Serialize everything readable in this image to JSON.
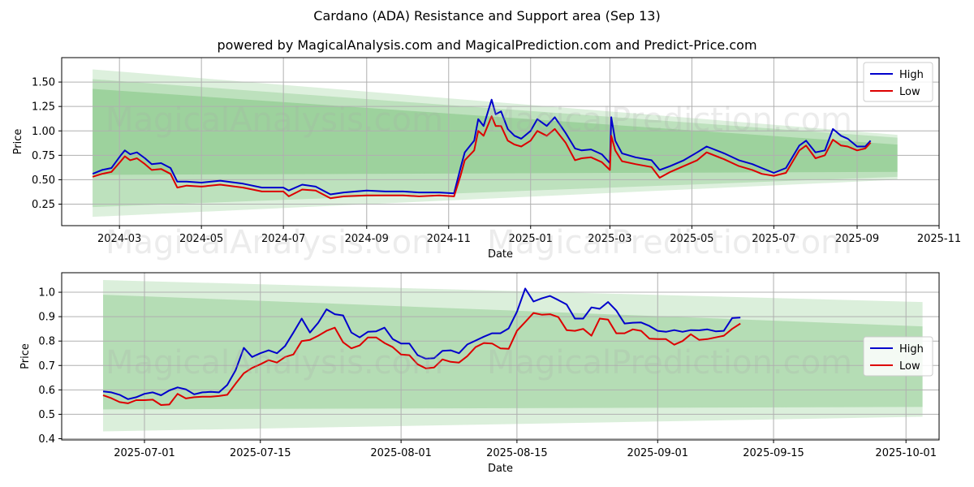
{
  "title": "Cardano (ADA) Resistance and Support area (Sep 13)",
  "subtitle": "powered by MagicalAnalysis.com and MagicalPrediction.com and Predict-Price.com",
  "watermarks": [
    "MagicalAnalysis.com",
    "MagicalPrediction.com"
  ],
  "colors": {
    "high": "#0000cc",
    "low": "#dd0000",
    "band": "#2ca02c",
    "grid": "#b0b0b0"
  },
  "chart_data": [
    {
      "type": "line",
      "xlabel": "Date",
      "ylabel": "Price",
      "xlim": [
        "2024-01-18",
        "2025-11-01"
      ],
      "ylim": [
        0.03,
        1.75
      ],
      "xticks": [
        "2024-03",
        "2024-05",
        "2024-07",
        "2024-09",
        "2024-11",
        "2025-01",
        "2025-03",
        "2025-05",
        "2025-07",
        "2025-09",
        "2025-11"
      ],
      "xtick_dates": [
        "2024-03-01",
        "2024-05-01",
        "2024-07-01",
        "2024-09-01",
        "2024-11-01",
        "2025-01-01",
        "2025-03-01",
        "2025-05-01",
        "2025-07-01",
        "2025-09-01",
        "2025-11-01"
      ],
      "yticks": [
        0.25,
        0.5,
        0.75,
        1.0,
        1.25,
        1.5
      ],
      "ytick_labels": [
        "0.25",
        "0.50",
        "0.75",
        "1.00",
        "1.25",
        "1.50"
      ],
      "grid": true,
      "legend": {
        "position": "top-right",
        "entries": [
          "High",
          "Low"
        ]
      },
      "bands": [
        {
          "x": [
            "2024-02-10",
            "2025-10-01"
          ],
          "upper": [
            1.63,
            0.96
          ],
          "lower": [
            0.12,
            0.5
          ]
        },
        {
          "x": [
            "2024-02-10",
            "2025-10-01"
          ],
          "upper": [
            1.53,
            0.93
          ],
          "lower": [
            0.22,
            0.53
          ]
        },
        {
          "x": [
            "2024-02-10",
            "2025-10-01"
          ],
          "upper": [
            1.43,
            0.86
          ],
          "lower": [
            0.55,
            0.58
          ]
        }
      ],
      "x": [
        "2024-02-10",
        "2024-02-17",
        "2024-02-24",
        "2024-03-02",
        "2024-03-05",
        "2024-03-09",
        "2024-03-14",
        "2024-03-20",
        "2024-03-25",
        "2024-04-01",
        "2024-04-08",
        "2024-04-13",
        "2024-04-20",
        "2024-05-01",
        "2024-05-15",
        "2024-06-01",
        "2024-06-15",
        "2024-07-01",
        "2024-07-05",
        "2024-07-15",
        "2024-07-25",
        "2024-08-05",
        "2024-08-15",
        "2024-09-01",
        "2024-09-15",
        "2024-09-28",
        "2024-10-10",
        "2024-10-25",
        "2024-11-05",
        "2024-11-10",
        "2024-11-13",
        "2024-11-20",
        "2024-11-23",
        "2024-11-27",
        "2024-12-03",
        "2024-12-06",
        "2024-12-10",
        "2024-12-15",
        "2024-12-20",
        "2024-12-25",
        "2025-01-01",
        "2025-01-06",
        "2025-01-13",
        "2025-01-19",
        "2025-01-27",
        "2025-02-03",
        "2025-02-08",
        "2025-02-15",
        "2025-02-23",
        "2025-03-01",
        "2025-03-02",
        "2025-03-05",
        "2025-03-10",
        "2025-03-20",
        "2025-04-01",
        "2025-04-07",
        "2025-04-15",
        "2025-04-25",
        "2025-05-05",
        "2025-05-12",
        "2025-05-25",
        "2025-06-05",
        "2025-06-15",
        "2025-06-22",
        "2025-07-01",
        "2025-07-10",
        "2025-07-20",
        "2025-07-25",
        "2025-08-01",
        "2025-08-08",
        "2025-08-14",
        "2025-08-20",
        "2025-08-25",
        "2025-09-01",
        "2025-09-07",
        "2025-09-11"
      ],
      "series": [
        {
          "name": "High",
          "values": [
            0.56,
            0.6,
            0.62,
            0.75,
            0.8,
            0.76,
            0.78,
            0.72,
            0.66,
            0.67,
            0.62,
            0.48,
            0.48,
            0.47,
            0.49,
            0.46,
            0.42,
            0.42,
            0.39,
            0.45,
            0.43,
            0.35,
            0.37,
            0.39,
            0.38,
            0.38,
            0.37,
            0.37,
            0.36,
            0.63,
            0.78,
            0.9,
            1.12,
            1.05,
            1.32,
            1.17,
            1.2,
            1.02,
            0.95,
            0.92,
            1.0,
            1.12,
            1.05,
            1.14,
            0.98,
            0.82,
            0.8,
            0.81,
            0.76,
            0.67,
            1.14,
            0.9,
            0.77,
            0.73,
            0.7,
            0.6,
            0.64,
            0.7,
            0.78,
            0.84,
            0.77,
            0.7,
            0.66,
            0.62,
            0.57,
            0.62,
            0.85,
            0.9,
            0.78,
            0.8,
            1.02,
            0.95,
            0.92,
            0.84,
            0.84,
            0.9
          ]
        },
        {
          "name": "Low",
          "values": [
            0.53,
            0.56,
            0.58,
            0.69,
            0.74,
            0.7,
            0.72,
            0.66,
            0.6,
            0.61,
            0.56,
            0.42,
            0.44,
            0.43,
            0.45,
            0.42,
            0.38,
            0.38,
            0.33,
            0.4,
            0.39,
            0.31,
            0.33,
            0.34,
            0.34,
            0.34,
            0.33,
            0.34,
            0.33,
            0.55,
            0.7,
            0.8,
            1.0,
            0.95,
            1.15,
            1.05,
            1.05,
            0.9,
            0.86,
            0.84,
            0.9,
            1.0,
            0.95,
            1.02,
            0.88,
            0.7,
            0.72,
            0.73,
            0.68,
            0.6,
            0.95,
            0.8,
            0.69,
            0.66,
            0.63,
            0.52,
            0.58,
            0.64,
            0.7,
            0.78,
            0.71,
            0.64,
            0.6,
            0.56,
            0.54,
            0.57,
            0.8,
            0.85,
            0.72,
            0.75,
            0.91,
            0.85,
            0.84,
            0.8,
            0.82,
            0.88
          ]
        }
      ]
    },
    {
      "type": "line",
      "xlabel": "Date",
      "ylabel": "Price",
      "xlim": [
        "2025-06-21",
        "2025-10-05"
      ],
      "ylim": [
        0.395,
        1.08
      ],
      "xticks": [
        "2025-07-01",
        "2025-07-15",
        "2025-08-01",
        "2025-08-15",
        "2025-09-01",
        "2025-09-15",
        "2025-10-01"
      ],
      "xtick_dates": [
        "2025-07-01",
        "2025-07-15",
        "2025-08-01",
        "2025-08-15",
        "2025-09-01",
        "2025-09-15",
        "2025-10-01"
      ],
      "yticks": [
        0.4,
        0.5,
        0.6,
        0.7,
        0.8,
        0.9,
        1.0
      ],
      "ytick_labels": [
        "0.4",
        "0.5",
        "0.6",
        "0.7",
        "0.8",
        "0.9",
        "1.0"
      ],
      "grid": true,
      "legend": {
        "position": "center-right",
        "entries": [
          "High",
          "Low"
        ]
      },
      "bands": [
        {
          "x": [
            "2025-06-26",
            "2025-10-03"
          ],
          "upper": [
            1.05,
            0.96
          ],
          "lower": [
            0.43,
            0.49
          ]
        },
        {
          "x": [
            "2025-06-26",
            "2025-10-03"
          ],
          "upper": [
            0.99,
            0.86
          ],
          "lower": [
            0.52,
            0.53
          ]
        }
      ],
      "x": [
        "2025-06-26",
        "2025-06-27",
        "2025-06-28",
        "2025-06-29",
        "2025-06-30",
        "2025-07-01",
        "2025-07-02",
        "2025-07-03",
        "2025-07-04",
        "2025-07-05",
        "2025-07-06",
        "2025-07-07",
        "2025-07-08",
        "2025-07-09",
        "2025-07-10",
        "2025-07-11",
        "2025-07-12",
        "2025-07-13",
        "2025-07-14",
        "2025-07-15",
        "2025-07-16",
        "2025-07-17",
        "2025-07-18",
        "2025-07-19",
        "2025-07-20",
        "2025-07-21",
        "2025-07-22",
        "2025-07-23",
        "2025-07-24",
        "2025-07-25",
        "2025-07-26",
        "2025-07-27",
        "2025-07-28",
        "2025-07-29",
        "2025-07-30",
        "2025-07-31",
        "2025-08-01",
        "2025-08-02",
        "2025-08-03",
        "2025-08-04",
        "2025-08-05",
        "2025-08-06",
        "2025-08-07",
        "2025-08-08",
        "2025-08-09",
        "2025-08-10",
        "2025-08-11",
        "2025-08-12",
        "2025-08-13",
        "2025-08-14",
        "2025-08-15",
        "2025-08-16",
        "2025-08-17",
        "2025-08-18",
        "2025-08-19",
        "2025-08-20",
        "2025-08-21",
        "2025-08-22",
        "2025-08-23",
        "2025-08-24",
        "2025-08-25",
        "2025-08-26",
        "2025-08-27",
        "2025-08-28",
        "2025-08-29",
        "2025-08-30",
        "2025-08-31",
        "2025-09-01",
        "2025-09-02",
        "2025-09-03",
        "2025-09-04",
        "2025-09-05",
        "2025-09-06",
        "2025-09-07",
        "2025-09-08",
        "2025-09-09",
        "2025-09-10",
        "2025-09-11"
      ],
      "series": [
        {
          "name": "High",
          "values": [
            0.594,
            0.59,
            0.58,
            0.562,
            0.57,
            0.584,
            0.59,
            0.578,
            0.598,
            0.61,
            0.602,
            0.582,
            0.59,
            0.592,
            0.59,
            0.62,
            0.68,
            0.772,
            0.735,
            0.75,
            0.762,
            0.75,
            0.78,
            0.835,
            0.892,
            0.835,
            0.875,
            0.93,
            0.91,
            0.905,
            0.835,
            0.815,
            0.838,
            0.84,
            0.855,
            0.808,
            0.79,
            0.79,
            0.742,
            0.728,
            0.73,
            0.76,
            0.762,
            0.75,
            0.786,
            0.802,
            0.818,
            0.832,
            0.832,
            0.852,
            0.92,
            1.015,
            0.962,
            0.975,
            0.985,
            0.968,
            0.95,
            0.892,
            0.892,
            0.938,
            0.932,
            0.96,
            0.925,
            0.872,
            0.875,
            0.876,
            0.862,
            0.842,
            0.838,
            0.845,
            0.838,
            0.845,
            0.844,
            0.848,
            0.84,
            0.842,
            0.894,
            0.896
          ]
        },
        {
          "name": "Low",
          "values": [
            0.578,
            0.566,
            0.55,
            0.545,
            0.558,
            0.558,
            0.56,
            0.538,
            0.54,
            0.584,
            0.565,
            0.57,
            0.572,
            0.572,
            0.575,
            0.58,
            0.625,
            0.668,
            0.69,
            0.705,
            0.722,
            0.712,
            0.735,
            0.745,
            0.8,
            0.805,
            0.822,
            0.842,
            0.855,
            0.795,
            0.77,
            0.782,
            0.815,
            0.815,
            0.792,
            0.775,
            0.745,
            0.742,
            0.705,
            0.688,
            0.692,
            0.725,
            0.715,
            0.712,
            0.738,
            0.775,
            0.792,
            0.79,
            0.77,
            0.768,
            0.842,
            0.878,
            0.915,
            0.908,
            0.91,
            0.898,
            0.845,
            0.842,
            0.85,
            0.822,
            0.892,
            0.888,
            0.832,
            0.832,
            0.848,
            0.842,
            0.81,
            0.808,
            0.808,
            0.785,
            0.8,
            0.828,
            0.805,
            0.808,
            0.815,
            0.822,
            0.85,
            0.872
          ]
        }
      ]
    }
  ]
}
